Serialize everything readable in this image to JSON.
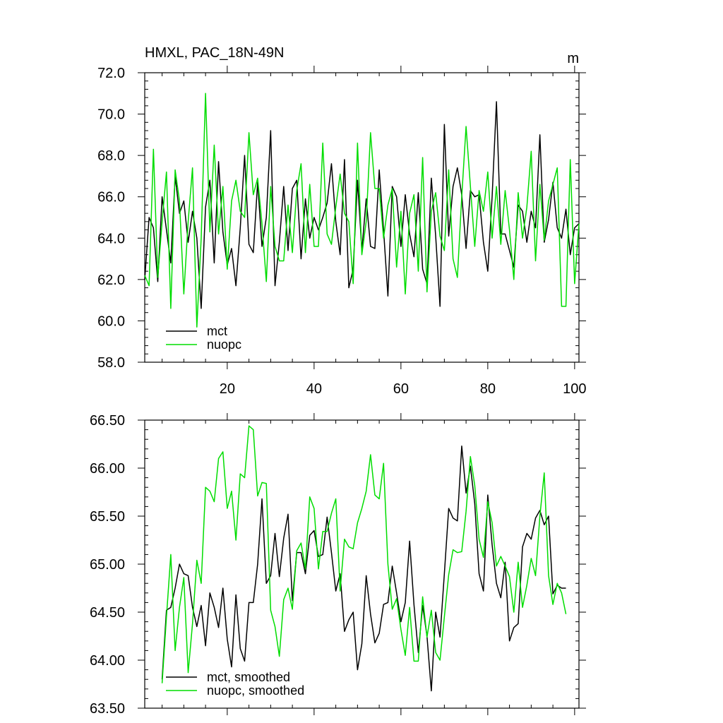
{
  "chart_data": [
    {
      "type": "line",
      "title": "HMXL, PAC_18N-49N",
      "units": "m",
      "xlim": [
        1,
        101
      ],
      "ylim": [
        58.0,
        72.0
      ],
      "xticks": [
        20,
        40,
        60,
        80,
        100
      ],
      "yticks": [
        58.0,
        60.0,
        62.0,
        64.0,
        66.0,
        68.0,
        70.0,
        72.0
      ],
      "ytick_decimals": 1,
      "grid": false,
      "legend_position": "bottom-left",
      "x": [
        1,
        2,
        3,
        4,
        5,
        6,
        7,
        8,
        9,
        10,
        11,
        12,
        13,
        14,
        15,
        16,
        17,
        18,
        19,
        20,
        21,
        22,
        23,
        24,
        25,
        26,
        27,
        28,
        29,
        30,
        31,
        32,
        33,
        34,
        35,
        36,
        37,
        38,
        39,
        40,
        41,
        42,
        43,
        44,
        45,
        46,
        47,
        48,
        49,
        50,
        51,
        52,
        53,
        54,
        55,
        56,
        57,
        58,
        59,
        60,
        61,
        62,
        63,
        64,
        65,
        66,
        67,
        68,
        69,
        70,
        71,
        72,
        73,
        74,
        75,
        76,
        77,
        78,
        79,
        80,
        81,
        82,
        83,
        84,
        85,
        86,
        87,
        88,
        89,
        90,
        91,
        92,
        93,
        94,
        95,
        96,
        97,
        98,
        99,
        100,
        101
      ],
      "series": [
        {
          "name": "mct",
          "color": "#000000",
          "values": [
            62.0,
            65.0,
            64.5,
            61.9,
            66.0,
            64.4,
            62.8,
            67.0,
            65.2,
            65.8,
            63.8,
            65.3,
            64.0,
            60.6,
            65.5,
            66.8,
            62.8,
            67.7,
            64.3,
            62.7,
            63.5,
            61.7,
            64.5,
            68.0,
            63.7,
            63.3,
            66.7,
            63.6,
            65.0,
            69.2,
            61.7,
            63.8,
            66.5,
            63.4,
            66.4,
            66.8,
            63.0,
            65.9,
            64.0,
            65.0,
            64.4,
            65.0,
            65.7,
            67.6,
            64.8,
            63.2,
            67.8,
            61.6,
            62.5,
            66.8,
            63.4,
            65.9,
            63.6,
            63.5,
            67.3,
            64.4,
            61.2,
            66.5,
            66.0,
            63.6,
            66.1,
            64.2,
            63.1,
            66.2,
            62.5,
            61.8,
            66.9,
            64.1,
            60.7,
            69.5,
            64.1,
            66.5,
            67.4,
            66.1,
            63.5,
            66.3,
            66.0,
            66.1,
            63.8,
            62.4,
            66.0,
            70.6,
            64.2,
            64.2,
            63.4,
            62.6,
            65.6,
            65.3,
            63.8,
            65.3,
            64.5,
            69.0,
            63.8,
            64.9,
            66.7,
            64.5,
            64.0,
            65.4,
            63.2,
            64.5,
            64.7
          ]
        },
        {
          "name": "nuopc",
          "color": "#00dd00",
          "values": [
            62.2,
            61.7,
            68.3,
            62.1,
            64.8,
            67.2,
            60.6,
            67.3,
            65.8,
            61.3,
            64.8,
            67.4,
            59.7,
            64.0,
            71.0,
            64.3,
            68.5,
            64.2,
            66.5,
            62.5,
            65.8,
            66.8,
            65.3,
            65.0,
            69.1,
            66.1,
            66.9,
            64.7,
            61.9,
            66.5,
            63.6,
            62.9,
            62.9,
            65.6,
            63.3,
            66.3,
            67.6,
            63.3,
            66.6,
            63.6,
            63.6,
            68.6,
            64.2,
            63.7,
            65.5,
            67.1,
            65.2,
            64.8,
            61.8,
            68.6,
            63.2,
            64.8,
            69.1,
            66.4,
            66.4,
            64.0,
            65.6,
            66.4,
            62.6,
            65.3,
            61.3,
            65.2,
            66.1,
            62.4,
            67.9,
            61.4,
            65.3,
            66.2,
            64.1,
            63.4,
            67.3,
            63.0,
            62.1,
            66.0,
            69.4,
            66.5,
            63.6,
            66.3,
            65.3,
            67.2,
            64.0,
            66.5,
            63.7,
            66.3,
            64.4,
            62.0,
            66.2,
            64.0,
            65.5,
            68.2,
            62.9,
            66.6,
            63.9,
            65.8,
            66.6,
            67.4,
            60.7,
            60.7,
            67.8,
            61.8,
            64.7
          ]
        }
      ]
    },
    {
      "type": "line",
      "title": "",
      "units": "",
      "xlim": [
        1,
        101
      ],
      "ylim": [
        63.5,
        66.5
      ],
      "xticks": [
        20,
        40,
        60,
        80,
        100
      ],
      "yticks": [
        63.5,
        64.0,
        64.5,
        65.0,
        65.5,
        66.0,
        66.5
      ],
      "ytick_decimals": 2,
      "show_xtick_labels": false,
      "grid": false,
      "legend_position": "bottom-left",
      "x": [
        5,
        6,
        7,
        8,
        9,
        10,
        11,
        12,
        13,
        14,
        15,
        16,
        17,
        18,
        19,
        20,
        21,
        22,
        23,
        24,
        25,
        26,
        27,
        28,
        29,
        30,
        31,
        32,
        33,
        34,
        35,
        36,
        37,
        38,
        39,
        40,
        41,
        42,
        43,
        44,
        45,
        46,
        47,
        48,
        49,
        50,
        51,
        52,
        53,
        54,
        55,
        56,
        57,
        58,
        59,
        60,
        61,
        62,
        63,
        64,
        65,
        66,
        67,
        68,
        69,
        70,
        71,
        72,
        73,
        74,
        75,
        76,
        77,
        78,
        79,
        80,
        81,
        82,
        83,
        84,
        85,
        86,
        87,
        88,
        89,
        90,
        91,
        92,
        93,
        94,
        95,
        96,
        97,
        98
      ],
      "series": [
        {
          "name": "mct, smoothed",
          "color": "#000000",
          "values": [
            63.8,
            64.52,
            64.55,
            64.75,
            65.0,
            64.9,
            64.88,
            64.55,
            64.35,
            64.57,
            64.15,
            64.7,
            64.55,
            64.34,
            64.75,
            64.22,
            63.93,
            64.68,
            64.12,
            63.99,
            64.6,
            64.6,
            65.0,
            65.68,
            64.8,
            64.88,
            65.32,
            64.87,
            65.27,
            65.52,
            64.62,
            65.12,
            65.12,
            64.9,
            65.3,
            65.35,
            65.08,
            65.1,
            65.49,
            65.12,
            64.72,
            64.9,
            64.3,
            64.42,
            64.5,
            63.9,
            64.17,
            64.88,
            64.48,
            64.18,
            64.28,
            64.58,
            64.6,
            64.98,
            64.7,
            64.4,
            64.6,
            65.24,
            64.58,
            64.08,
            64.57,
            64.25,
            63.68,
            64.5,
            64.24,
            64.9,
            65.58,
            65.48,
            65.45,
            66.23,
            65.74,
            66.02,
            65.63,
            64.9,
            64.72,
            65.72,
            65.2,
            64.8,
            64.65,
            65.02,
            64.2,
            64.34,
            64.38,
            65.18,
            65.32,
            65.26,
            65.48,
            65.56,
            65.41,
            65.5,
            64.69,
            64.78,
            64.75,
            64.75
          ]
        },
        {
          "name": "nuopc, smoothed",
          "color": "#00dd00",
          "values": [
            63.76,
            64.45,
            65.1,
            64.1,
            64.55,
            64.86,
            63.87,
            64.38,
            65.04,
            64.8,
            65.8,
            65.76,
            65.65,
            66.1,
            66.17,
            65.58,
            65.76,
            65.25,
            65.94,
            65.9,
            66.44,
            66.4,
            65.71,
            65.85,
            65.84,
            64.52,
            64.35,
            64.04,
            64.63,
            64.75,
            64.53,
            65.14,
            65.22,
            64.95,
            65.7,
            65.58,
            64.95,
            65.34,
            65.34,
            65.53,
            65.68,
            64.72,
            65.26,
            65.18,
            65.16,
            65.43,
            65.58,
            65.76,
            66.14,
            65.72,
            65.68,
            66.05,
            65.0,
            64.53,
            64.64,
            64.32,
            64.05,
            64.55,
            63.99,
            63.99,
            64.66,
            64.24,
            64.52,
            64.08,
            64.0,
            64.45,
            64.89,
            65.15,
            65.12,
            65.13,
            65.55,
            66.12,
            65.82,
            65.26,
            65.07,
            65.65,
            65.43,
            64.98,
            65.08,
            64.98,
            64.87,
            64.5,
            65.02,
            64.55,
            64.78,
            65.06,
            64.88,
            65.5,
            65.95,
            64.88,
            64.58,
            64.8,
            64.7,
            64.48
          ]
        }
      ]
    }
  ]
}
